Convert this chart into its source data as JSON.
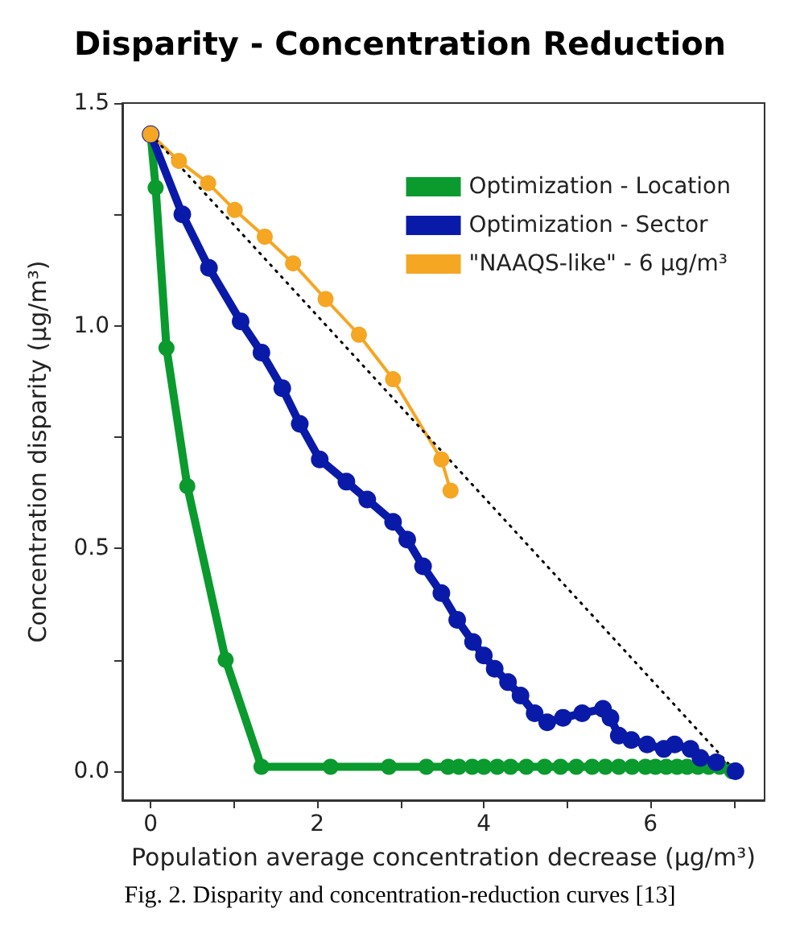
{
  "chart_data": {
    "type": "line",
    "title": "Disparity - Concentration Reduction",
    "xlabel": "Population average concentration decrease (μg/m³)",
    "ylabel": "Concentration disparity (μg/m³)",
    "annotations": [
      "Fig. 2. Disparity and concentration-reduction curves [13]"
    ],
    "xlim": [
      -0.34,
      7.37
    ],
    "ylim": [
      -0.065,
      1.5
    ],
    "xticks": [
      0,
      {
        "value": 1,
        "label": null
      },
      2,
      {
        "value": 3,
        "label": null
      },
      4,
      {
        "value": 5,
        "label": null
      },
      6,
      {
        "value": 7,
        "label": null
      }
    ],
    "yticks": [
      {
        "value": 0,
        "label": "0.0"
      },
      {
        "value": 0.25,
        "label": null
      },
      {
        "value": 0.5,
        "label": "0.5"
      },
      {
        "value": 0.75,
        "label": null
      },
      {
        "value": 1,
        "label": "1.0"
      },
      {
        "value": 1.25,
        "label": null
      },
      {
        "value": 1.5,
        "label": "1.5"
      }
    ],
    "grid": false,
    "legend": "top right",
    "series": [
      {
        "name": "Optimization - Location",
        "color": "#0a9a2e",
        "marker": "circle",
        "x": [
          0,
          0.06,
          0.19,
          0.44,
          0.9,
          1.33,
          2.16,
          2.86,
          3.31,
          3.57,
          3.7,
          3.86,
          4.0,
          4.16,
          4.32,
          4.51,
          4.73,
          4.92,
          5.11,
          5.3,
          5.46,
          5.62,
          5.78,
          5.94,
          6.06,
          6.19,
          6.32,
          6.44,
          6.57,
          6.7,
          6.83,
          6.98
        ],
        "values": [
          1.43,
          1.31,
          0.95,
          0.64,
          0.25,
          0.01,
          0.01,
          0.01,
          0.01,
          0.01,
          0.01,
          0.01,
          0.01,
          0.01,
          0.01,
          0.01,
          0.01,
          0.01,
          0.01,
          0.01,
          0.01,
          0.01,
          0.01,
          0.01,
          0.01,
          0.01,
          0.01,
          0.01,
          0.01,
          0.01,
          0.01,
          0.0
        ]
      },
      {
        "name": "Optimization - Sector",
        "color": "#0a1aa8",
        "marker": "circle",
        "x": [
          0,
          0.38,
          0.7,
          1.08,
          1.33,
          1.58,
          1.79,
          2.03,
          2.35,
          2.6,
          2.91,
          3.08,
          3.27,
          3.49,
          3.68,
          3.87,
          4.0,
          4.13,
          4.29,
          4.44,
          4.61,
          4.76,
          4.95,
          5.18,
          5.43,
          5.52,
          5.62,
          5.77,
          5.96,
          6.16,
          6.29,
          6.48,
          6.6,
          6.79,
          7.02
        ],
        "values": [
          1.43,
          1.25,
          1.13,
          1.01,
          0.94,
          0.86,
          0.78,
          0.7,
          0.65,
          0.61,
          0.56,
          0.52,
          0.46,
          0.4,
          0.34,
          0.29,
          0.26,
          0.23,
          0.2,
          0.17,
          0.13,
          0.11,
          0.12,
          0.13,
          0.14,
          0.12,
          0.08,
          0.07,
          0.06,
          0.05,
          0.06,
          0.05,
          0.03,
          0.02,
          0.0
        ]
      },
      {
        "name": "\"NAAQS-like\" - 6 μg/m³",
        "color": "#f5a623",
        "marker": "circle",
        "x": [
          0,
          0.34,
          0.69,
          1.01,
          1.37,
          1.71,
          2.1,
          2.5,
          2.91,
          3.49,
          3.6
        ],
        "values": [
          1.43,
          1.37,
          1.32,
          1.26,
          1.2,
          1.14,
          1.06,
          0.98,
          0.88,
          0.7,
          0.63
        ]
      },
      {
        "color": "#000000",
        "marker": "none",
        "line_style": "dotted",
        "x": [
          0,
          7.02
        ],
        "values": [
          1.43,
          0.0
        ]
      }
    ]
  }
}
